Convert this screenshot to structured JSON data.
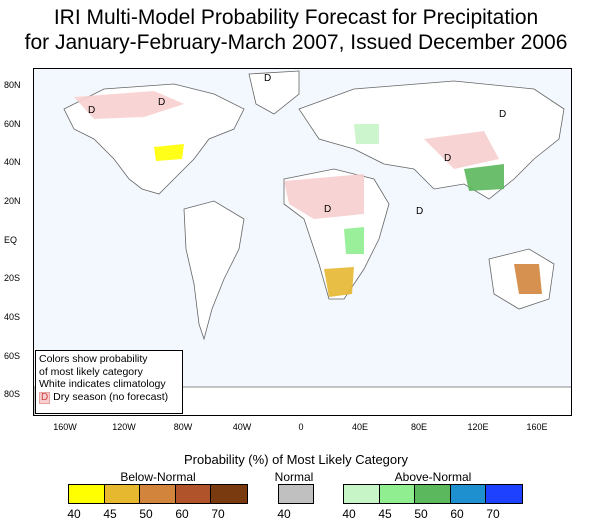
{
  "title_line1": "IRI Multi-Model Probability Forecast for Precipitation",
  "title_line2": "for January-February-March 2007, Issued December 2006",
  "lat_labels": [
    "80N",
    "60N",
    "40N",
    "20N",
    "EQ",
    "20S",
    "40S",
    "60S",
    "80S"
  ],
  "lon_labels": [
    "160W",
    "120W",
    "80W",
    "40W",
    "0",
    "40E",
    "80E",
    "120E",
    "160E"
  ],
  "note": {
    "line1": "Colors show probability",
    "line2": "of most likely category",
    "line3": "White indicates climatology",
    "dry_symbol": "D",
    "dry_text": "Dry season (no forecast)"
  },
  "dry_markers": [
    "D",
    "D",
    "D",
    "D",
    "D",
    "D",
    "D"
  ],
  "legend": {
    "title": "Probability (%) of Most Likely Category",
    "below_normal": {
      "label": "Below-Normal",
      "colors": [
        "#ffff00",
        "#e6b830",
        "#d2843c",
        "#b0522a",
        "#7a3a10"
      ],
      "ticks": [
        "40",
        "45",
        "50",
        "60",
        "70"
      ]
    },
    "normal": {
      "label": "Normal",
      "colors": [
        "#c0c0c0"
      ],
      "ticks": [
        "40"
      ]
    },
    "above_normal": {
      "label": "Above-Normal",
      "colors": [
        "#c8f5c8",
        "#90ee90",
        "#5cb85c",
        "#1e90d0",
        "#1e40ff"
      ],
      "ticks": [
        "40",
        "45",
        "50",
        "60",
        "70"
      ]
    }
  }
}
